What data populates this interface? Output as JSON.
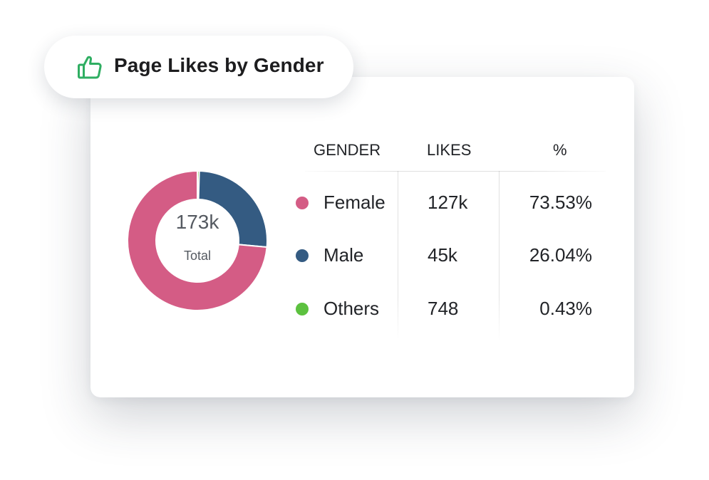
{
  "title": "Page Likes by Gender",
  "icons": {
    "title_icon": "thumbs-up-icon",
    "title_icon_color": "#2fae62"
  },
  "donut": {
    "total_value": "173k",
    "total_label": "Total"
  },
  "table": {
    "headers": [
      "GENDER",
      "LIKES",
      "%"
    ],
    "rows": [
      {
        "gender": "Female",
        "likes": "127k",
        "percent": "73.53%",
        "color": "#d45c85"
      },
      {
        "gender": "Male",
        "likes": "45k",
        "percent": "26.04%",
        "color": "#345b82"
      },
      {
        "gender": "Others",
        "likes": "748",
        "percent": "0.43%",
        "color": "#5cc13f"
      }
    ]
  },
  "chart_data": {
    "type": "pie",
    "donut": true,
    "categories": [
      "Female",
      "Male",
      "Others"
    ],
    "values": [
      73.53,
      26.04,
      0.43
    ],
    "colors": [
      "#d45c85",
      "#345b82",
      "#5cc13f"
    ],
    "title": "Page Likes by Gender",
    "center_text": [
      "173k",
      "Total"
    ]
  }
}
